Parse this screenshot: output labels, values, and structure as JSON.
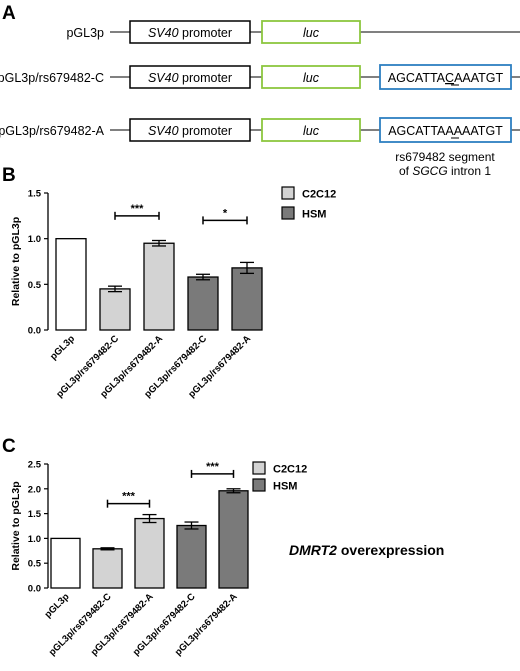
{
  "panel_a": {
    "label": "A",
    "constructs": [
      {
        "name": "pGL3p",
        "promoter_italic": "SV40",
        "promoter_rest": " promoter",
        "luc": "luc",
        "insert": null
      },
      {
        "name": "pGL3p/rs679482-C",
        "promoter_italic": "SV40",
        "promoter_rest": " promoter",
        "luc": "luc",
        "insert": {
          "pre": "AGCATTA",
          "allele": "C",
          "post": "AAATGT"
        }
      },
      {
        "name": "pGL3p/rs679482-A",
        "promoter_italic": "SV40",
        "promoter_rest": " promoter",
        "luc": "luc",
        "insert": {
          "pre": "AGCATTA",
          "allele": "A",
          "post": "AAATGT"
        }
      }
    ],
    "caption_line1": "rs679482 segment",
    "caption_line2_pre": "of ",
    "caption_line2_italic": "SGCG",
    "caption_line2_post": " intron 1",
    "colors": {
      "box": "#000000",
      "luc": "#8cc63f",
      "insert": "#2d7fc1",
      "line": "#000000"
    }
  },
  "chart_data": [
    {
      "type": "bar",
      "panel": "B",
      "ylabel": "Relative to pGL3p",
      "ylim": [
        0,
        1.5
      ],
      "yticks": [
        "0.0",
        "0.5",
        "1.0",
        "1.5"
      ],
      "categories": [
        "pGL3p",
        "pGL3p/rs679482-C",
        "pGL3p/rs679482-A",
        "pGL3p/rs679482-C",
        "pGL3p/rs679482-A"
      ],
      "values": [
        1.0,
        0.45,
        0.95,
        0.58,
        0.68
      ],
      "errors": [
        0,
        0.03,
        0.03,
        0.03,
        0.06
      ],
      "bar_groups": [
        "control",
        "C2C12",
        "C2C12",
        "HSM",
        "HSM"
      ],
      "legend": [
        {
          "name": "C2C12",
          "color": "#d3d3d3"
        },
        {
          "name": "HSM",
          "color": "#7a7a7a"
        }
      ],
      "legend_position": "top-right",
      "significance": [
        {
          "from": 1,
          "to": 2,
          "label": "***",
          "level": 1.25
        },
        {
          "from": 3,
          "to": 4,
          "label": "*",
          "level": 1.2
        }
      ],
      "colors": {
        "control": "#ffffff",
        "C2C12": "#d3d3d3",
        "HSM": "#7a7a7a"
      }
    },
    {
      "type": "bar",
      "panel": "C",
      "ylabel": "Relative to pGL3p",
      "ylim": [
        0,
        2.5
      ],
      "yticks": [
        "0.0",
        "0.5",
        "1.0",
        "1.5",
        "2.0",
        "2.5"
      ],
      "categories": [
        "pGL3p",
        "pGL3p/rs679482-C",
        "pGL3p/rs679482-A",
        "pGL3p/rs679482-C",
        "pGL3p/rs679482-A"
      ],
      "values": [
        1.0,
        0.79,
        1.4,
        1.26,
        1.96
      ],
      "errors": [
        0,
        0.02,
        0.08,
        0.07,
        0.04
      ],
      "bar_groups": [
        "control",
        "C2C12",
        "C2C12",
        "HSM",
        "HSM"
      ],
      "legend": [
        {
          "name": "C2C12",
          "color": "#d3d3d3"
        },
        {
          "name": "HSM",
          "color": "#7a7a7a"
        }
      ],
      "legend_position": "top-right",
      "significance": [
        {
          "from": 1,
          "to": 2,
          "label": "***",
          "level": 1.7
        },
        {
          "from": 3,
          "to": 4,
          "label": "***",
          "level": 2.3
        }
      ],
      "annotation_italic": "DMRT2",
      "annotation_rest": " overexpression",
      "colors": {
        "control": "#ffffff",
        "C2C12": "#d3d3d3",
        "HSM": "#7a7a7a"
      }
    }
  ],
  "panel_labels": {
    "b": "B",
    "c": "C"
  }
}
